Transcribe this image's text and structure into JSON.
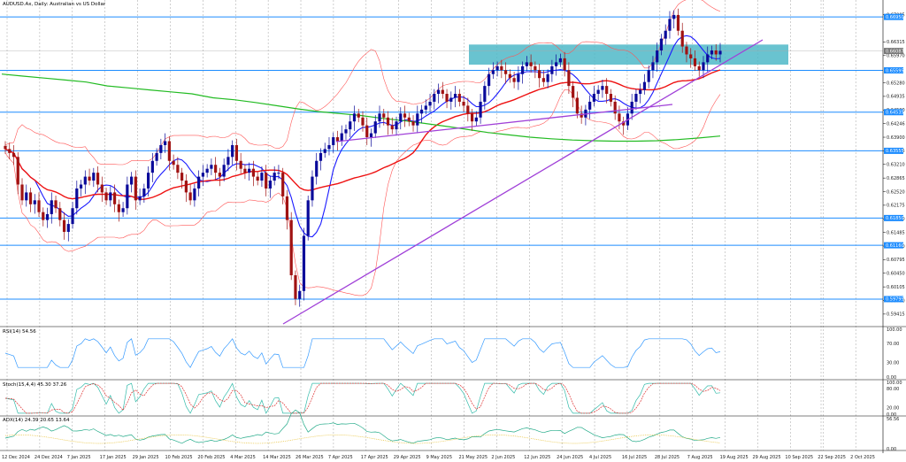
{
  "chart_data": {
    "type": "candlestick",
    "title": "AUDUSD.Ax, Daily: Australian vs US Dollar",
    "price_axis": {
      "min": 0.593,
      "max": 0.672,
      "ticks": [
        "0.67005",
        "0.66315",
        "0.65970",
        "0.65280",
        "0.64935",
        "0.64590",
        "0.64246",
        "0.63900",
        "0.63555",
        "0.63210",
        "0.62865",
        "0.62520",
        "0.62175",
        "0.61830",
        "0.61485",
        "0.61140",
        "0.60795",
        "0.60450",
        "0.60105",
        "0.59760",
        "0.59415"
      ]
    },
    "horizontal_levels": [
      0.6695,
      0.65595,
      0.64535,
      0.63555,
      0.6185,
      0.6116,
      0.59795
    ],
    "level_tags": [
      "0.66950",
      "0.65595",
      "0.64535",
      "0.63555",
      "0.61850",
      "0.61160",
      "0.59795"
    ],
    "current_price_tag": "0.66087",
    "current_price": 0.66087,
    "zone": {
      "y_top": 0.6625,
      "y_bottom": 0.6574
    },
    "x_labels": [
      "12 Dec 2024",
      "24 Dec 2024",
      "7 Jan 2025",
      "17 Jan 2025",
      "29 Jan 2025",
      "10 Feb 2025",
      "20 Feb 2025",
      "4 Mar 2025",
      "14 Mar 2025",
      "26 Mar 2025",
      "7 Apr 2025",
      "17 Apr 2025",
      "29 Apr 2025",
      "9 May 2025",
      "21 May 2025",
      "2 Jun 2025",
      "12 Jun 2025",
      "24 Jun 2025",
      "4 Jul 2025",
      "16 Jul 2025",
      "28 Jul 2025",
      "7 Aug 2025",
      "19 Aug 2025",
      "29 Aug 2025",
      "10 Sep 2025",
      "22 Sep 2025",
      "2 Oct 2025"
    ],
    "price_series": [
      0.636,
      0.635,
      0.634,
      0.627,
      0.623,
      0.625,
      0.622,
      0.623,
      0.62,
      0.618,
      0.6195,
      0.623,
      0.621,
      0.618,
      0.615,
      0.617,
      0.621,
      0.626,
      0.627,
      0.629,
      0.628,
      0.63,
      0.627,
      0.625,
      0.623,
      0.625,
      0.622,
      0.62,
      0.621,
      0.627,
      0.629,
      0.623,
      0.624,
      0.626,
      0.63,
      0.633,
      0.635,
      0.637,
      0.638,
      0.633,
      0.632,
      0.63,
      0.628,
      0.625,
      0.623,
      0.626,
      0.629,
      0.63,
      0.631,
      0.632,
      0.63,
      0.629,
      0.632,
      0.634,
      0.637,
      0.633,
      0.631,
      0.63,
      0.631,
      0.629,
      0.628,
      0.63,
      0.626,
      0.628,
      0.63,
      0.63,
      0.624,
      0.618,
      0.604,
      0.598,
      0.6,
      0.614,
      0.623,
      0.629,
      0.633,
      0.635,
      0.636,
      0.637,
      0.639,
      0.638,
      0.64,
      0.641,
      0.643,
      0.645,
      0.644,
      0.642,
      0.639,
      0.64,
      0.643,
      0.645,
      0.644,
      0.642,
      0.641,
      0.643,
      0.645,
      0.644,
      0.643,
      0.642,
      0.645,
      0.646,
      0.647,
      0.648,
      0.65,
      0.651,
      0.65,
      0.648,
      0.649,
      0.65,
      0.648,
      0.647,
      0.645,
      0.643,
      0.644,
      0.648,
      0.652,
      0.655,
      0.656,
      0.657,
      0.656,
      0.655,
      0.654,
      0.653,
      0.655,
      0.657,
      0.658,
      0.657,
      0.656,
      0.654,
      0.653,
      0.655,
      0.657,
      0.658,
      0.659,
      0.656,
      0.652,
      0.649,
      0.645,
      0.644,
      0.646,
      0.648,
      0.65,
      0.651,
      0.652,
      0.65,
      0.648,
      0.645,
      0.643,
      0.642,
      0.645,
      0.648,
      0.65,
      0.651,
      0.653,
      0.656,
      0.658,
      0.661,
      0.664,
      0.666,
      0.669,
      0.67,
      0.666,
      0.662,
      0.66,
      0.659,
      0.657,
      0.656,
      0.658,
      0.66,
      0.661,
      0.66,
      0.6609
    ],
    "sma_slow": [
      0.655,
      0.6545,
      0.654,
      0.6535,
      0.653,
      0.652,
      0.6515,
      0.651,
      0.6505,
      0.65,
      0.649,
      0.6485,
      0.6478,
      0.647,
      0.6462,
      0.6455,
      0.645,
      0.6445,
      0.6438,
      0.6432,
      0.6425,
      0.6418,
      0.641,
      0.6402,
      0.6396,
      0.639,
      0.6386,
      0.6383,
      0.6381,
      0.638,
      0.638,
      0.6381,
      0.6384,
      0.6388,
      0.6393
    ],
    "indicators": {
      "rsi_label": "RSI(14) 54.56",
      "rsi_ticks": [
        "100.00",
        "70.00",
        "30.00",
        "0.00"
      ],
      "stoch_label": "Stoch(15,4,4) 45.30 37.26",
      "stoch_ticks": [
        "100.00",
        "80.00",
        "20.00",
        "0.00"
      ],
      "adx_label": "ADX(14) 24.39 20.65 13.64",
      "adx_ticks": [
        "56.56",
        "0.00"
      ]
    },
    "colors": {
      "bull": "#0a0a9a",
      "bear": "#a01212",
      "ema_fast": "#1a1aff",
      "ema_mid": "#ee1111",
      "sma_slow": "#22bb22",
      "bands": "#ff5555",
      "levels": "#1c8cff",
      "trend": "#a040d8",
      "zone": "#4fb8c8",
      "rsi": "#3399ff",
      "stoch_main": "#33bbaa",
      "stoch_signal": "#dd3333",
      "adx_main": "#22aa88",
      "adx_plus": "#e8c23a",
      "adx_minus": "#cccc66"
    }
  }
}
